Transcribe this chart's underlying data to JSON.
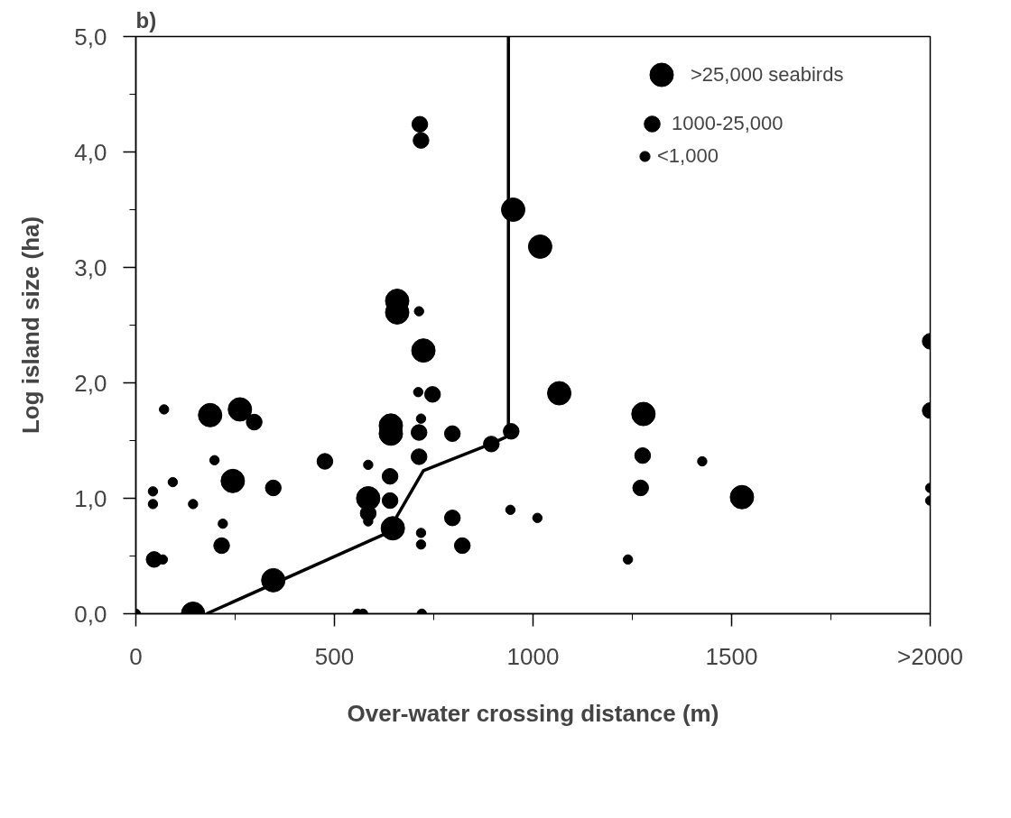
{
  "chart_data": {
    "type": "bubble",
    "title": "b)",
    "xlabel": "Over-water crossing distance (m)",
    "ylabel": "Log island size (ha)",
    "xlim": [
      0,
      2000
    ],
    "ylim": [
      0,
      5
    ],
    "xticks": [
      0,
      {
        "value": 250,
        "label": null
      },
      500,
      {
        "value": 750,
        "label": null
      },
      1000,
      {
        "value": 1250,
        "label": null
      },
      1500,
      {
        "value": 1750,
        "label": null
      },
      {
        "value": 2000,
        "label": ">2000"
      }
    ],
    "yticks": [
      {
        "value": 0,
        "label": "0,0"
      },
      {
        "value": 0.5,
        "label": null
      },
      {
        "value": 1,
        "label": "1,0"
      },
      {
        "value": 1.5,
        "label": null
      },
      {
        "value": 2,
        "label": "2,0"
      },
      {
        "value": 2.5,
        "label": null
      },
      {
        "value": 3,
        "label": "3,0"
      },
      {
        "value": 3.5,
        "label": null
      },
      {
        "value": 4,
        "label": "4,0"
      },
      {
        "value": 4.5,
        "label": null
      },
      {
        "value": 5,
        "label": "5,0"
      }
    ],
    "grid": false,
    "legend": "top right",
    "marker": "circle",
    "series": [
      {
        "name": ">25,000 seabirds",
        "color": "#000000",
        "x": [
          144,
          346,
          187,
          244,
          262,
          585,
          647,
          642,
          642,
          724,
          950,
          1018,
          658,
          658,
          1066,
          1278,
          1526
        ],
        "values": [
          0,
          0.29,
          1.72,
          1.15,
          1.77,
          1.0,
          0.74,
          1.63,
          1.56,
          2.28,
          3.5,
          3.18,
          2.71,
          2.61,
          1.91,
          1.73,
          1.01
        ],
        "sizes": [
          1,
          1,
          1,
          1,
          1,
          1,
          1,
          1,
          1,
          1,
          1,
          1,
          1,
          1,
          1,
          1,
          1
        ]
      },
      {
        "name": "1000-25,000",
        "color": "#000000",
        "x": [
          46,
          216,
          298,
          346,
          476,
          585,
          640,
          640,
          713,
          713,
          747,
          797,
          797,
          822,
          895,
          945,
          1276,
          1271,
          2000,
          2000,
          715,
          718
        ],
        "values": [
          0.47,
          0.59,
          1.66,
          1.09,
          1.32,
          0.87,
          1.19,
          0.98,
          1.36,
          1.57,
          1.9,
          1.56,
          0.83,
          0.59,
          1.47,
          1.58,
          1.37,
          1.09,
          2.36,
          1.76,
          4.24,
          4.1
        ],
        "sizes": [
          0.45,
          0.45,
          0.45,
          0.45,
          0.45,
          0.45,
          0.45,
          0.45,
          0.45,
          0.45,
          0.45,
          0.45,
          0.45,
          0.45,
          0.45,
          0.45,
          0.45,
          0.45,
          0.45,
          0.45,
          0.45,
          0.45
        ]
      },
      {
        "name": "<1,000",
        "color": "#000000",
        "x": [
          0,
          68,
          43,
          43,
          93,
          71,
          144,
          198,
          219,
          585,
          585,
          718,
          711,
          718,
          718,
          720,
          558,
          572,
          943,
          1011,
          1239,
          1426,
          2000,
          2000,
          713
        ],
        "values": [
          0,
          0.47,
          1.06,
          0.95,
          1.14,
          1.77,
          0.95,
          1.33,
          0.78,
          1.29,
          0.8,
          1.69,
          1.92,
          0.7,
          0.6,
          0,
          0,
          0,
          0.9,
          0.83,
          0.47,
          1.32,
          1.09,
          0.98,
          2.62
        ],
        "sizes": [
          0.16,
          0.16,
          0.16,
          0.16,
          0.16,
          0.16,
          0.16,
          0.16,
          0.16,
          0.16,
          0.16,
          0.16,
          0.16,
          0.16,
          0.16,
          0.16,
          0.16,
          0.16,
          0.16,
          0.16,
          0.16,
          0.16,
          0.16,
          0.16,
          0.16
        ]
      },
      {
        "type": "line",
        "color": "#000000",
        "marker": "none",
        "x": [
          178,
          633,
          724,
          893,
          938,
          938
        ],
        "values": [
          0,
          0.7,
          1.24,
          1.47,
          1.54,
          5
        ]
      }
    ]
  }
}
